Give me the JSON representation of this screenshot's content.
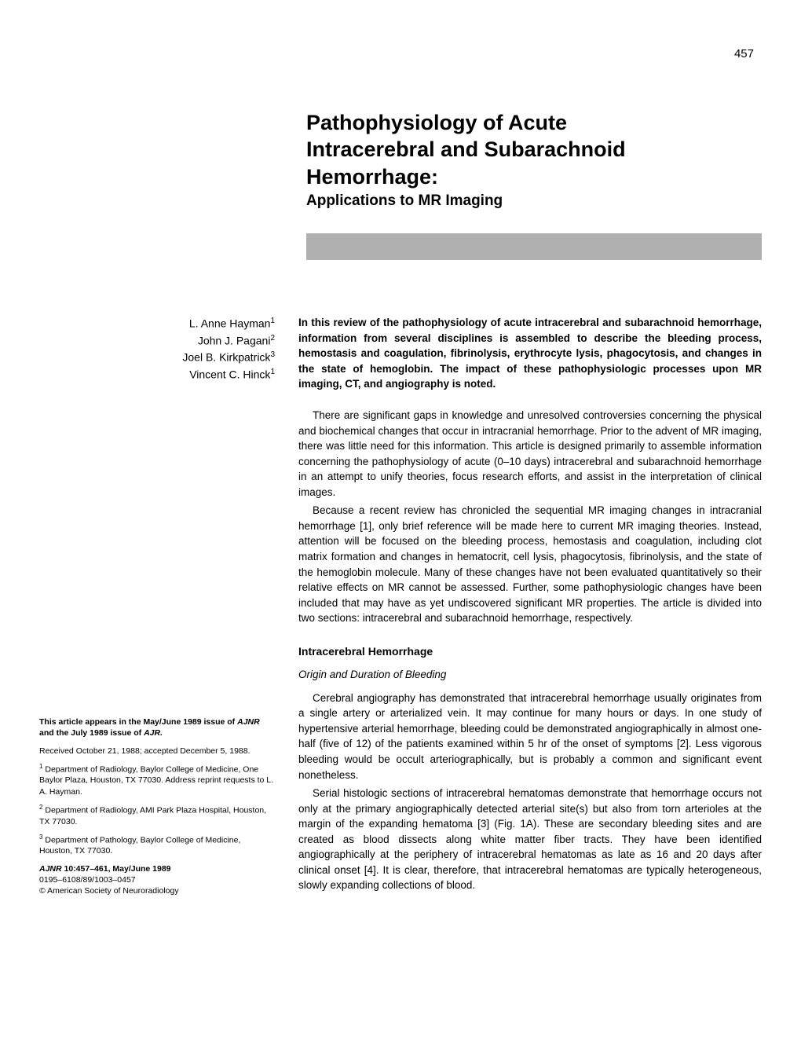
{
  "page_number": "457",
  "title": {
    "line1": "Pathophysiology of Acute",
    "line2": "Intracerebral and Subarachnoid",
    "line3": "Hemorrhage:",
    "subtitle": "Applications to MR Imaging"
  },
  "authors": [
    {
      "name": "L. Anne Hayman",
      "affil": "1"
    },
    {
      "name": "John J. Pagani",
      "affil": "2"
    },
    {
      "name": "Joel B. Kirkpatrick",
      "affil": "3"
    },
    {
      "name": "Vincent C. Hinck",
      "affil": "1"
    }
  ],
  "abstract": "In this review of the pathophysiology of acute intracerebral and subarachnoid hemorrhage, information from several disciplines is assembled to describe the bleeding process, hemostasis and coagulation, fibrinolysis, erythrocyte lysis, phagocytosis, and changes in the state of hemoglobin. The impact of these pathophysiologic processes upon MR imaging, CT, and angiography is noted.",
  "body": {
    "para1": "There are significant gaps in knowledge and unresolved controversies concerning the physical and biochemical changes that occur in intracranial hemorrhage. Prior to the advent of MR imaging, there was little need for this information. This article is designed primarily to assemble information concerning the pathophysiology of acute (0–10 days) intracerebral and subarachnoid hemorrhage in an attempt to unify theories, focus research efforts, and assist in the interpretation of clinical images.",
    "para2": "Because a recent review has chronicled the sequential MR imaging changes in intracranial hemorrhage [1], only brief reference will be made here to current MR imaging theories. Instead, attention will be focused on the bleeding process, hemostasis and coagulation, including clot matrix formation and changes in hematocrit, cell lysis, phagocytosis, fibrinolysis, and the state of the hemoglobin molecule. Many of these changes have not been evaluated quantitatively so their relative effects on MR cannot be assessed. Further, some pathophysiologic changes have been included that may have as yet undiscovered significant MR properties. The article is divided into two sections: intracerebral and subarachnoid hemorrhage, respectively.",
    "section_heading": "Intracerebral Hemorrhage",
    "subsection_heading": "Origin and Duration of Bleeding",
    "para3": "Cerebral angiography has demonstrated that intracerebral hemorrhage usually originates from a single artery or arterialized vein. It may continue for many hours or days. In one study of hypertensive arterial hemorrhage, bleeding could be demonstrated angiographically in almost one-half (five of 12) of the patients examined within 5 hr of the onset of symptoms [2]. Less vigorous bleeding would be occult arteriographically, but is probably a common and significant event nonetheless.",
    "para4": "Serial histologic sections of intracerebral hematomas demonstrate that hemorrhage occurs not only at the primary angiographically detected arterial site(s) but also from torn arterioles at the margin of the expanding hematoma [3] (Fig. 1A). These are secondary bleeding sites and are created as blood dissects along white matter fiber tracts. They have been identified angiographically at the periphery of intracerebral hematomas as late as 16 and 20 days after clinical onset [4]. It is clear, therefore, that intracerebral hematomas are typically heterogeneous, slowly expanding collections of blood."
  },
  "sidebar": {
    "note1_prefix": "This article appears in the May/June 1989 issue of ",
    "note1_journal1": "AJNR",
    "note1_mid": " and the July 1989 issue of ",
    "note1_journal2": "AJR.",
    "received": "Received October 21, 1988; accepted December 5, 1988.",
    "affil1_sup": "1",
    "affil1": " Department of Radiology, Baylor College of Medicine, One Baylor Plaza, Houston, TX 77030. Address reprint requests to L. A. Hayman.",
    "affil2_sup": "2",
    "affil2": " Department of Radiology, AMI Park Plaza Hospital, Houston, TX 77030.",
    "affil3_sup": "3",
    "affil3": " Department of Pathology, Baylor College of Medicine, Houston, TX 77030.",
    "citation_journal": "AJNR",
    "citation_rest": " 10:457–461, May/June 1989",
    "issn": "0195–6108/89/1003–0457",
    "copyright": "© American Society of Neuroradiology"
  }
}
